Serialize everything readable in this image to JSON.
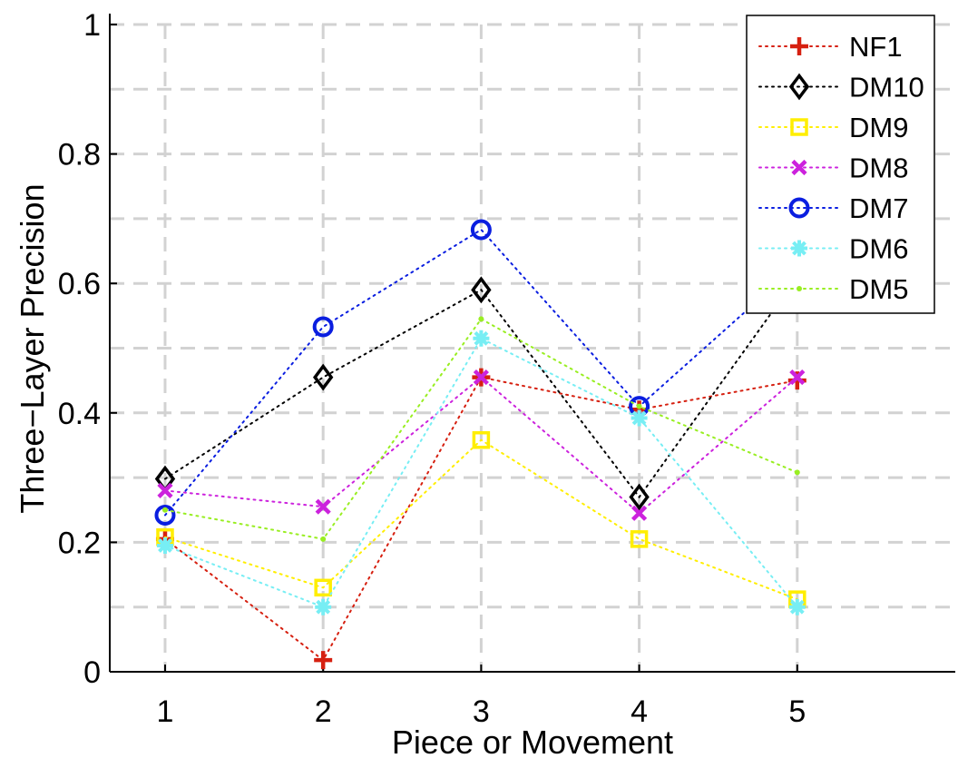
{
  "chart_data": {
    "type": "line",
    "xlabel": "Piece or Movement",
    "ylabel": "Three−Layer Precision",
    "x": [
      1,
      2,
      3,
      4,
      5
    ],
    "xlim": [
      0.65,
      6.0
    ],
    "ylim": [
      0,
      1
    ],
    "xticks": [
      "1",
      "2",
      "3",
      "4",
      "5"
    ],
    "yticks": [
      "0",
      "0.2",
      "0.4",
      "0.6",
      "0.8",
      "1"
    ],
    "grid": true,
    "legend_position": "top-right",
    "series": [
      {
        "name": "NF1",
        "color": "#d62010",
        "marker": "plus",
        "values": [
          0.205,
          0.018,
          0.455,
          0.405,
          0.45
        ]
      },
      {
        "name": "DM10",
        "color": "#000000",
        "marker": "diamond",
        "values": [
          0.298,
          0.455,
          0.59,
          0.27,
          0.61
        ]
      },
      {
        "name": "DM9",
        "color": "#ffee00",
        "marker": "square",
        "values": [
          0.208,
          0.13,
          0.358,
          0.205,
          0.112
        ]
      },
      {
        "name": "DM8",
        "color": "#cc22dd",
        "marker": "x",
        "values": [
          0.28,
          0.255,
          0.455,
          0.245,
          0.455
        ]
      },
      {
        "name": "DM7",
        "color": "#0a1ee0",
        "marker": "circle",
        "values": [
          0.242,
          0.533,
          0.683,
          0.41,
          0.628
        ]
      },
      {
        "name": "DM6",
        "color": "#77eef4",
        "marker": "asterisk",
        "values": [
          0.195,
          0.1,
          0.515,
          0.392,
          0.1
        ]
      },
      {
        "name": "DM5",
        "color": "#99ee22",
        "marker": "dot",
        "values": [
          0.25,
          0.205,
          0.545,
          0.41,
          0.308
        ]
      }
    ]
  }
}
